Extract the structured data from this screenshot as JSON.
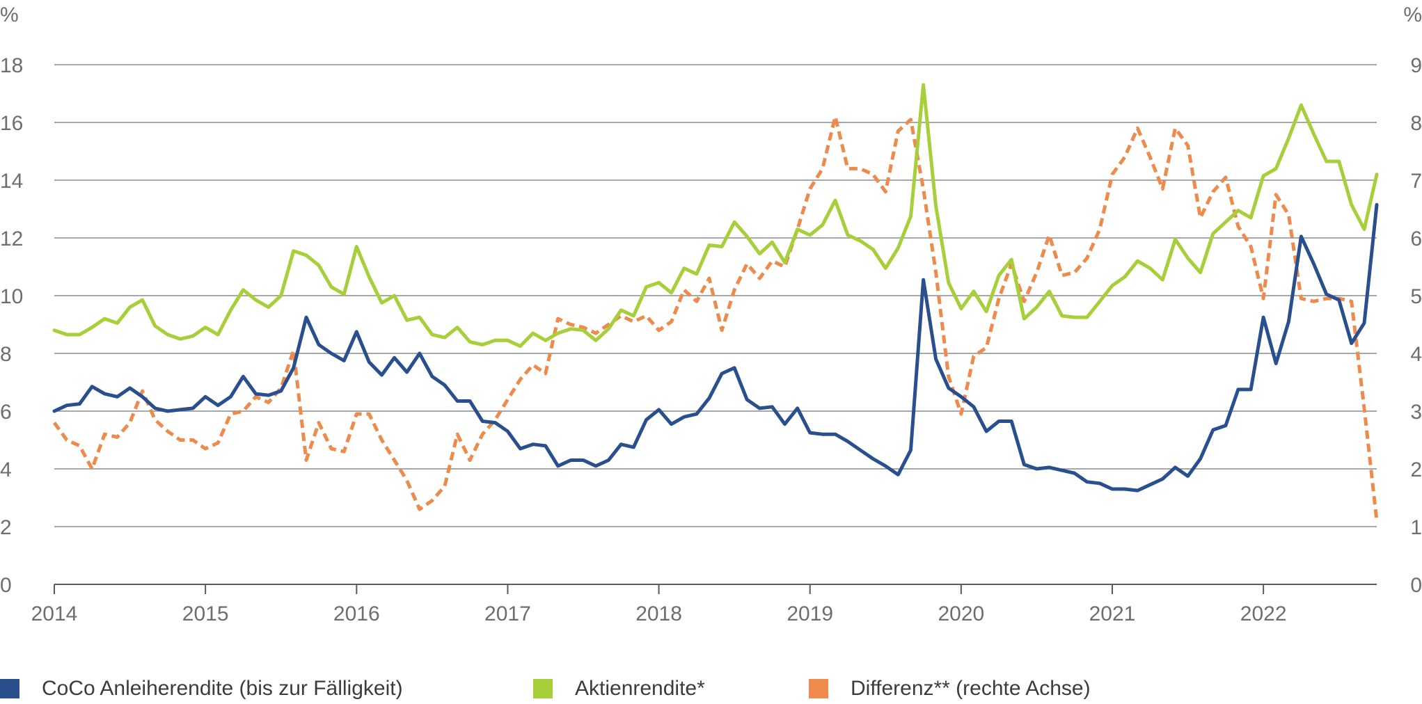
{
  "chart_data": {
    "type": "line",
    "title": "",
    "left_axis": {
      "unit": "%",
      "min": 0,
      "max": 18,
      "ticks": [
        0,
        2,
        4,
        6,
        8,
        10,
        12,
        14,
        16,
        18
      ]
    },
    "right_axis": {
      "unit": "%",
      "min": 0,
      "max": 9,
      "ticks": [
        0,
        1,
        2,
        3,
        4,
        5,
        6,
        7,
        8,
        9
      ]
    },
    "x_axis": {
      "start": 2014.0,
      "end": 2022.75,
      "ticks": [
        "2014",
        "2015",
        "2016",
        "2017",
        "2018",
        "2019",
        "2020",
        "2021",
        "2022"
      ]
    },
    "grid": true,
    "legend_position": "bottom",
    "series": [
      {
        "name": "CoCo Anleiherendite (bis zur Fälligkeit)",
        "axis": "left",
        "color": "#2a4f8f",
        "style": "solid",
        "x": [
          2014.0,
          2014.083,
          2014.167,
          2014.25,
          2014.333,
          2014.417,
          2014.5,
          2014.583,
          2014.667,
          2014.75,
          2014.833,
          2014.917,
          2015.0,
          2015.083,
          2015.167,
          2015.25,
          2015.333,
          2015.417,
          2015.5,
          2015.583,
          2015.667,
          2015.75,
          2015.833,
          2015.917,
          2016.0,
          2016.083,
          2016.167,
          2016.25,
          2016.333,
          2016.417,
          2016.5,
          2016.583,
          2016.667,
          2016.75,
          2016.833,
          2016.917,
          2017.0,
          2017.083,
          2017.167,
          2017.25,
          2017.333,
          2017.417,
          2017.5,
          2017.583,
          2017.667,
          2017.75,
          2017.833,
          2017.917,
          2018.0,
          2018.083,
          2018.167,
          2018.25,
          2018.333,
          2018.417,
          2018.5,
          2018.583,
          2018.667,
          2018.75,
          2018.833,
          2018.917,
          2019.0,
          2019.083,
          2019.167,
          2019.25,
          2019.333,
          2019.417,
          2019.5,
          2019.583,
          2019.667,
          2019.75,
          2019.833,
          2019.917,
          2020.0,
          2020.083,
          2020.167,
          2020.25,
          2020.333,
          2020.417,
          2020.5,
          2020.583,
          2020.667,
          2020.75,
          2020.833,
          2020.917,
          2021.0,
          2021.083,
          2021.167,
          2021.25,
          2021.333,
          2021.417,
          2021.5,
          2021.583,
          2021.667,
          2021.75,
          2021.833,
          2021.917,
          2022.0,
          2022.083,
          2022.167,
          2022.25,
          2022.333,
          2022.417,
          2022.5,
          2022.583,
          2022.667,
          2022.75
        ],
        "values": [
          6.0,
          6.2,
          6.25,
          6.85,
          6.6,
          6.5,
          6.8,
          6.5,
          6.1,
          6.0,
          6.05,
          6.1,
          6.5,
          6.2,
          6.5,
          7.2,
          6.6,
          6.55,
          6.7,
          7.5,
          9.25,
          8.3,
          8.0,
          7.75,
          8.75,
          7.7,
          7.25,
          7.85,
          7.35,
          8.0,
          7.2,
          6.9,
          6.35,
          6.35,
          5.65,
          5.6,
          5.3,
          4.7,
          4.85,
          4.8,
          4.1,
          4.3,
          4.3,
          4.1,
          4.3,
          4.85,
          4.75,
          5.7,
          6.05,
          5.55,
          5.8,
          5.9,
          6.45,
          7.3,
          7.5,
          6.4,
          6.1,
          6.15,
          5.55,
          6.1,
          5.25,
          5.2,
          5.2,
          4.95,
          4.65,
          4.35,
          4.1,
          3.8,
          4.65,
          10.55,
          7.8,
          6.8,
          6.5,
          6.15,
          5.3,
          5.65,
          5.65,
          4.15,
          4.0,
          4.05,
          3.95,
          3.85,
          3.55,
          3.5,
          3.3,
          3.3,
          3.25,
          3.45,
          3.65,
          4.05,
          3.75,
          4.35,
          5.35,
          5.5,
          6.75,
          6.75,
          9.25,
          7.65,
          9.1,
          12.05,
          11.1,
          10.05,
          9.85,
          8.35,
          9.05,
          13.15
        ]
      },
      {
        "name": "Aktienrendite*",
        "axis": "left",
        "color": "#a6cf39",
        "style": "solid",
        "x": [
          2014.0,
          2014.083,
          2014.167,
          2014.25,
          2014.333,
          2014.417,
          2014.5,
          2014.583,
          2014.667,
          2014.75,
          2014.833,
          2014.917,
          2015.0,
          2015.083,
          2015.167,
          2015.25,
          2015.333,
          2015.417,
          2015.5,
          2015.583,
          2015.667,
          2015.75,
          2015.833,
          2015.917,
          2016.0,
          2016.083,
          2016.167,
          2016.25,
          2016.333,
          2016.417,
          2016.5,
          2016.583,
          2016.667,
          2016.75,
          2016.833,
          2016.917,
          2017.0,
          2017.083,
          2017.167,
          2017.25,
          2017.333,
          2017.417,
          2017.5,
          2017.583,
          2017.667,
          2017.75,
          2017.833,
          2017.917,
          2018.0,
          2018.083,
          2018.167,
          2018.25,
          2018.333,
          2018.417,
          2018.5,
          2018.583,
          2018.667,
          2018.75,
          2018.833,
          2018.917,
          2019.0,
          2019.083,
          2019.167,
          2019.25,
          2019.333,
          2019.417,
          2019.5,
          2019.583,
          2019.667,
          2019.75,
          2019.833,
          2019.917,
          2020.0,
          2020.083,
          2020.167,
          2020.25,
          2020.333,
          2020.417,
          2020.5,
          2020.583,
          2020.667,
          2020.75,
          2020.833,
          2020.917,
          2021.0,
          2021.083,
          2021.167,
          2021.25,
          2021.333,
          2021.417,
          2021.5,
          2021.583,
          2021.667,
          2021.75,
          2021.833,
          2021.917,
          2022.0,
          2022.083,
          2022.167,
          2022.25,
          2022.333,
          2022.417,
          2022.5,
          2022.583,
          2022.667,
          2022.75
        ],
        "values": [
          8.8,
          8.65,
          8.65,
          8.9,
          9.2,
          9.05,
          9.6,
          9.85,
          8.95,
          8.65,
          8.5,
          8.6,
          8.9,
          8.65,
          9.5,
          10.2,
          9.85,
          9.6,
          10.0,
          11.55,
          11.4,
          11.05,
          10.3,
          10.05,
          11.7,
          10.65,
          9.75,
          10.0,
          9.15,
          9.25,
          8.65,
          8.55,
          8.9,
          8.4,
          8.3,
          8.45,
          8.45,
          8.25,
          8.7,
          8.45,
          8.7,
          8.85,
          8.8,
          8.45,
          8.85,
          9.5,
          9.3,
          10.3,
          10.45,
          10.1,
          10.95,
          10.75,
          11.75,
          11.7,
          12.55,
          12.05,
          11.45,
          11.85,
          11.15,
          12.3,
          12.1,
          12.45,
          13.3,
          12.1,
          11.9,
          11.6,
          10.95,
          11.65,
          12.75,
          17.3,
          13.1,
          10.45,
          9.55,
          10.15,
          9.45,
          10.7,
          11.25,
          9.2,
          9.6,
          10.15,
          9.3,
          9.25,
          9.25,
          9.8,
          10.35,
          10.65,
          11.2,
          10.95,
          10.55,
          11.95,
          11.3,
          10.8,
          12.15,
          12.55,
          12.95,
          12.7,
          14.15,
          14.4,
          15.45,
          16.6,
          15.6,
          14.65,
          14.65,
          13.15,
          12.3,
          14.2
        ]
      },
      {
        "name": "Differenz** (rechte Achse)",
        "axis": "right",
        "color": "#ee8a4c",
        "style": "dashed",
        "x": [
          2014.0,
          2014.083,
          2014.167,
          2014.25,
          2014.333,
          2014.417,
          2014.5,
          2014.583,
          2014.667,
          2014.75,
          2014.833,
          2014.917,
          2015.0,
          2015.083,
          2015.167,
          2015.25,
          2015.333,
          2015.417,
          2015.5,
          2015.583,
          2015.667,
          2015.75,
          2015.833,
          2015.917,
          2016.0,
          2016.083,
          2016.167,
          2016.25,
          2016.333,
          2016.417,
          2016.5,
          2016.583,
          2016.667,
          2016.75,
          2016.833,
          2016.917,
          2017.0,
          2017.083,
          2017.167,
          2017.25,
          2017.333,
          2017.417,
          2017.5,
          2017.583,
          2017.667,
          2017.75,
          2017.833,
          2017.917,
          2018.0,
          2018.083,
          2018.167,
          2018.25,
          2018.333,
          2018.417,
          2018.5,
          2018.583,
          2018.667,
          2018.75,
          2018.833,
          2018.917,
          2019.0,
          2019.083,
          2019.167,
          2019.25,
          2019.333,
          2019.417,
          2019.5,
          2019.583,
          2019.667,
          2019.75,
          2019.833,
          2019.917,
          2020.0,
          2020.083,
          2020.167,
          2020.25,
          2020.333,
          2020.417,
          2020.5,
          2020.583,
          2020.667,
          2020.75,
          2020.833,
          2020.917,
          2021.0,
          2021.083,
          2021.167,
          2021.25,
          2021.333,
          2021.417,
          2021.5,
          2021.583,
          2021.667,
          2021.75,
          2021.833,
          2021.917,
          2022.0,
          2022.083,
          2022.167,
          2022.25,
          2022.333,
          2022.417,
          2022.5,
          2022.583,
          2022.667,
          2022.75
        ],
        "values": [
          2.8,
          2.5,
          2.4,
          2.0,
          2.6,
          2.55,
          2.8,
          3.35,
          2.85,
          2.65,
          2.5,
          2.5,
          2.35,
          2.45,
          2.95,
          3.0,
          3.25,
          3.15,
          3.4,
          4.05,
          2.15,
          2.8,
          2.35,
          2.3,
          2.95,
          2.95,
          2.5,
          2.15,
          1.8,
          1.3,
          1.45,
          1.7,
          2.6,
          2.15,
          2.6,
          2.85,
          3.2,
          3.55,
          3.8,
          3.65,
          4.6,
          4.5,
          4.45,
          4.35,
          4.5,
          4.65,
          4.55,
          4.65,
          4.4,
          4.55,
          5.1,
          4.9,
          5.3,
          4.4,
          5.1,
          5.55,
          5.3,
          5.6,
          5.5,
          6.15,
          6.85,
          7.2,
          8.1,
          7.2,
          7.2,
          7.1,
          6.8,
          7.85,
          8.05,
          6.85,
          5.4,
          3.6,
          2.95,
          3.95,
          4.1,
          4.95,
          5.55,
          4.9,
          5.4,
          6.05,
          5.35,
          5.4,
          5.65,
          6.15,
          7.1,
          7.4,
          7.9,
          7.4,
          6.85,
          7.9,
          7.6,
          6.35,
          6.8,
          7.05,
          6.2,
          5.85,
          4.95,
          6.75,
          6.4,
          4.95,
          4.9,
          4.95,
          4.95,
          4.9,
          3.05,
          1.1
        ]
      }
    ]
  }
}
